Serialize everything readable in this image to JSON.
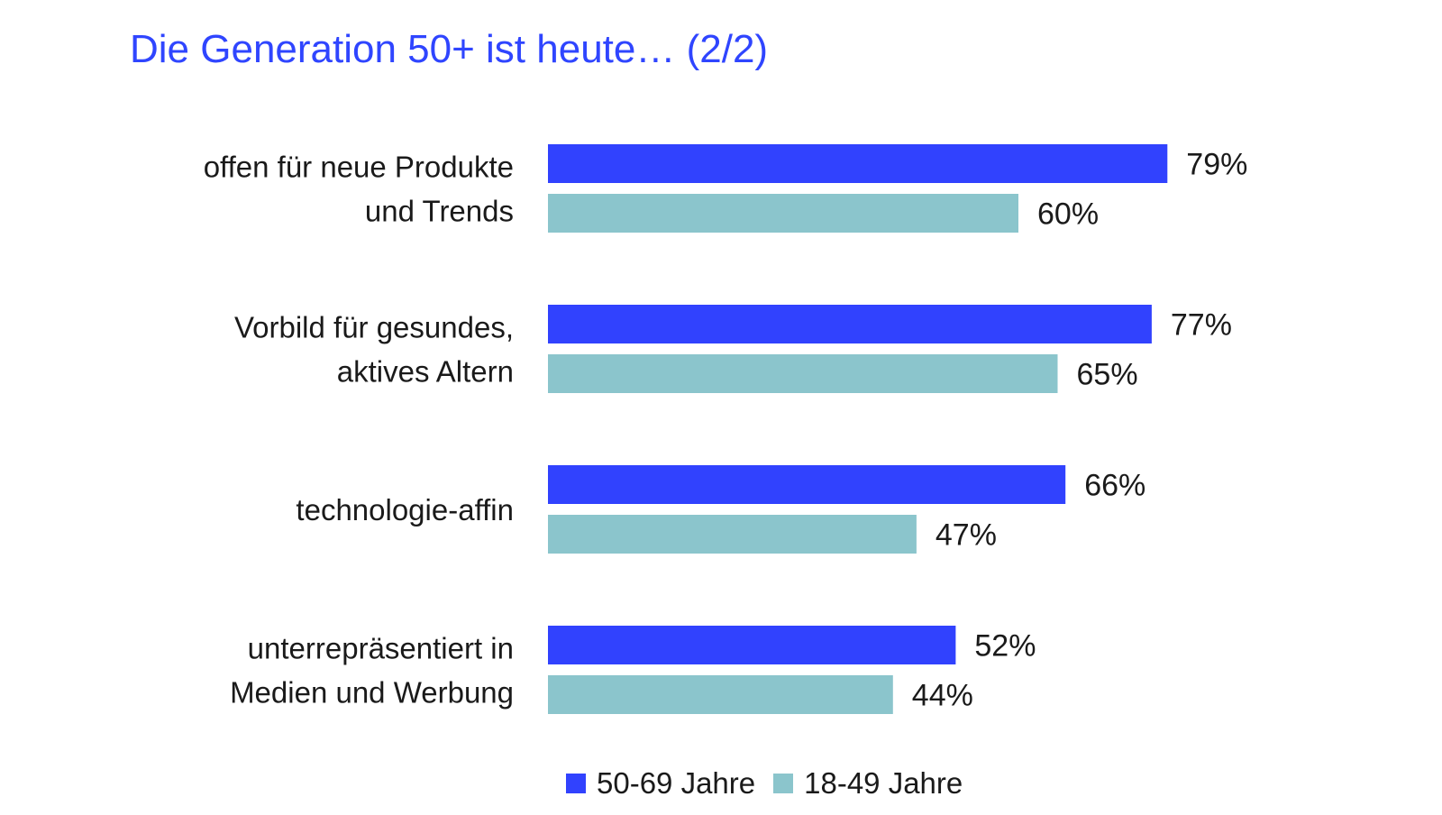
{
  "chart_data": {
    "type": "bar",
    "orientation": "horizontal",
    "title": "Die Generation 50+ ist heute… (2/2)",
    "categories": [
      [
        "offen für neue Produkte",
        "und Trends"
      ],
      [
        "Vorbild für gesundes,",
        "aktives Altern"
      ],
      [
        "technologie-affin"
      ],
      [
        "unterrepräsentiert in",
        "Medien und Werbung"
      ]
    ],
    "series": [
      {
        "name": "50-69 Jahre",
        "color": "#3142fe",
        "values": [
          79,
          77,
          66,
          52
        ],
        "labels": [
          "79%",
          "77%",
          "66%",
          "52%"
        ]
      },
      {
        "name": "18-49 Jahre",
        "color": "#8bc5cc",
        "values": [
          60,
          65,
          47,
          44
        ],
        "labels": [
          "60%",
          "65%",
          "47%",
          "44%"
        ]
      }
    ],
    "xlim": [
      0,
      100
    ],
    "grid": false,
    "legend_position": "bottom"
  }
}
